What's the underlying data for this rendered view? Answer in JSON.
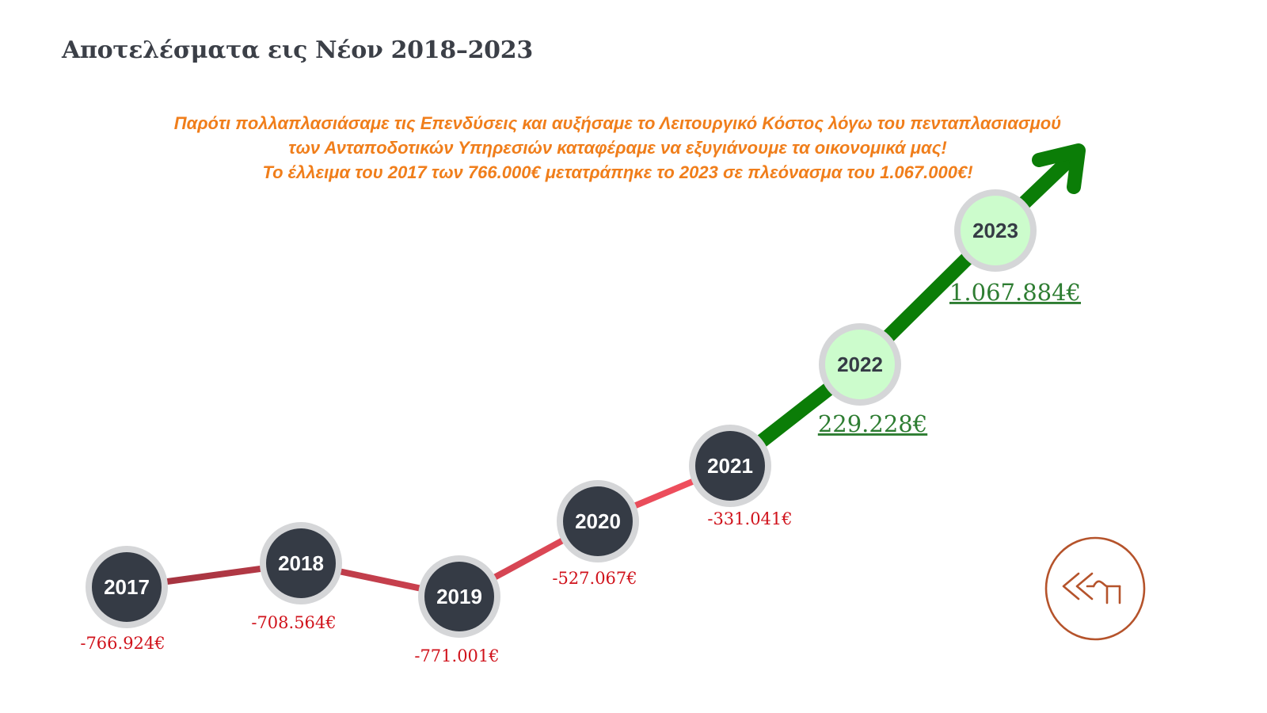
{
  "header": {
    "title": "Αποτελέσματα εις Νέον 2018–2023"
  },
  "note": {
    "line1": "Παρότι πολλαπλασιάσαμε τις Επενδύσεις και αυξήσαμε το Λειτουργικό Κόστος λόγω του πενταπλασιασμού",
    "line2": "των Ανταποδοτικών Υπηρεσιών  καταφέραμε να εξυγιάνουμε τα οικονομικά μας!",
    "line3": "Το έλλειμα του 2017 των 766.000€ μετατράπηκε το 2023 σε πλεόνασμα του 1.067.000€!"
  },
  "chart_data": {
    "type": "line",
    "x": [
      "2017",
      "2018",
      "2019",
      "2020",
      "2021",
      "2022",
      "2023"
    ],
    "values": [
      -766924,
      -708564,
      -771001,
      -527067,
      -331041,
      229228,
      1067884
    ],
    "value_labels": [
      "-766.924€",
      "-708.564€",
      "-771.001€",
      "-527.067€",
      "-331.041€",
      "229.228€",
      "1.067.884€"
    ],
    "colors": {
      "deficit_text": "#d0121b",
      "surplus_text": "#2e7d32",
      "deficit_line_start": "#a0323e",
      "deficit_line_end": "#f5505f",
      "surplus_line": "#0b7d07",
      "node_dark": "#353b45",
      "node_surplus": "#ccfccc",
      "node_ring": "#d5d6d8"
    }
  },
  "logo": {
    "color": "#b5532b"
  }
}
